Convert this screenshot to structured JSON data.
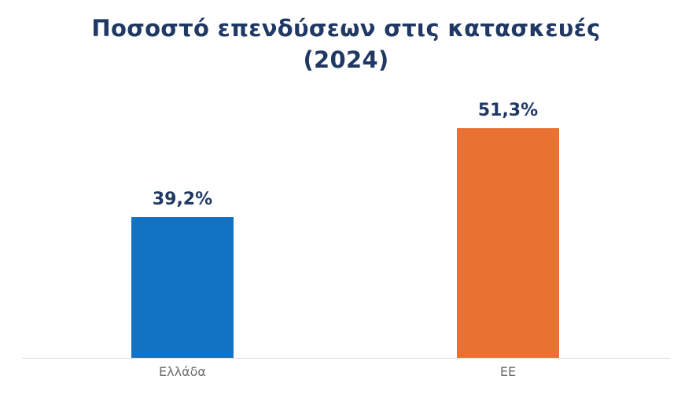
{
  "page": {
    "background": "#ffffff"
  },
  "chart_data": {
    "type": "bar",
    "title": "Ποσοστό επενδύσεων στις κατασκευές (2024)",
    "title_lines": [
      "Ποσοστό επενδύσεων στις κατασκευές",
      "(2024)"
    ],
    "categories": [
      "Ελλάδα",
      "ΕΕ"
    ],
    "values": [
      39.2,
      51.3
    ],
    "value_labels": [
      "39,2%",
      "51,3%"
    ],
    "series_name": "Ποσοστό επενδύσεων στις κατασκευές 2024",
    "bar_colors": [
      "#1273C4",
      "#E97132"
    ],
    "xlabel": "",
    "ylabel": "",
    "ylim": [
      20,
      57
    ],
    "grid": false,
    "legend": false,
    "colors": {
      "title": "#203864",
      "value_label": "#203864",
      "category_label": "#6e6e6e",
      "baseline": "#d9d9d9"
    }
  }
}
